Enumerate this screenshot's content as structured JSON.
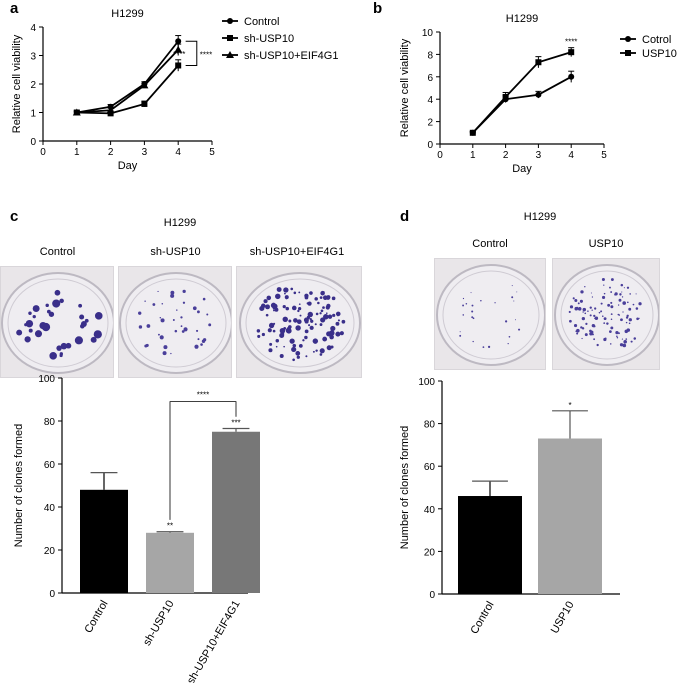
{
  "panels": {
    "a": {
      "letter": "a"
    },
    "b": {
      "letter": "b"
    },
    "c": {
      "letter": "c",
      "title": "H1299",
      "dish_labels": [
        "Control",
        "sh-USP10",
        "sh-USP10+EIF4G1"
      ]
    },
    "d": {
      "letter": "d",
      "title": "H1299",
      "dish_labels": [
        "Control",
        "USP10"
      ]
    }
  },
  "chart_data": [
    {
      "id": "a",
      "type": "line",
      "title": "H1299",
      "xlabel": "Day",
      "ylabel": "Relative cell viability",
      "xlim": [
        0,
        5
      ],
      "ylim": [
        0,
        4
      ],
      "xticks": [
        "0",
        "1",
        "2",
        "3",
        "4",
        "5"
      ],
      "yticks": [
        "0",
        "1",
        "2",
        "3",
        "4"
      ],
      "x": [
        1,
        2,
        3,
        4
      ],
      "series": [
        {
          "name": "Control",
          "marker": "circle",
          "values": [
            1.0,
            1.2,
            2.0,
            3.5
          ],
          "errors": [
            0.05,
            0.08,
            0.08,
            0.2
          ]
        },
        {
          "name": "sh-USP10",
          "marker": "square",
          "values": [
            1.0,
            0.97,
            1.3,
            2.65
          ],
          "errors": [
            0.05,
            0.07,
            0.1,
            0.2
          ]
        },
        {
          "name": "sh-USP10+EIF4G1",
          "marker": "triangle",
          "values": [
            1.0,
            1.08,
            1.95,
            3.2
          ],
          "errors": [
            0.05,
            0.08,
            0.08,
            0.2
          ]
        }
      ],
      "annotations": [
        "****",
        "****"
      ],
      "legend": "top-right"
    },
    {
      "id": "b",
      "type": "line",
      "title": "H1299",
      "xlabel": "Day",
      "ylabel": "Relative cell viability",
      "xlim": [
        0,
        5
      ],
      "ylim": [
        0,
        10
      ],
      "xticks": [
        "0",
        "1",
        "2",
        "3",
        "4",
        "5"
      ],
      "yticks": [
        "0",
        "2",
        "4",
        "6",
        "8",
        "10"
      ],
      "x": [
        1,
        2,
        3,
        4
      ],
      "series": [
        {
          "name": "Cotrol",
          "marker": "circle",
          "values": [
            1.0,
            4.0,
            4.4,
            6.0
          ],
          "errors": [
            0.1,
            0.3,
            0.3,
            0.5
          ]
        },
        {
          "name": "USP10",
          "marker": "square",
          "values": [
            1.0,
            4.2,
            7.3,
            8.2
          ],
          "errors": [
            0.1,
            0.4,
            0.5,
            0.4
          ]
        }
      ],
      "annotations": [
        "****"
      ],
      "legend": "top-right"
    },
    {
      "id": "c",
      "type": "bar",
      "categories": [
        "Control",
        "sh-USP10",
        "sh-USP10+EIF4G1"
      ],
      "values": [
        48,
        28,
        75
      ],
      "errors": [
        8,
        0.5,
        1.5
      ],
      "colors": [
        "#000000",
        "#a6a6a6",
        "#777777"
      ],
      "ylabel": "Number of clones formed",
      "ylim": [
        0,
        100
      ],
      "yticks": [
        "0",
        "20",
        "40",
        "60",
        "80",
        "100"
      ],
      "bar_annotations": [
        "",
        "**",
        "***"
      ],
      "bracket_annotation": "****"
    },
    {
      "id": "d",
      "type": "bar",
      "categories": [
        "Control",
        "USP10"
      ],
      "values": [
        46,
        73
      ],
      "errors": [
        7,
        13
      ],
      "colors": [
        "#000000",
        "#a6a6a6"
      ],
      "ylabel": "Number of clones formed",
      "ylim": [
        0,
        100
      ],
      "yticks": [
        "0",
        "20",
        "40",
        "60",
        "80",
        "100"
      ],
      "bar_annotations": [
        "",
        "*"
      ]
    }
  ]
}
